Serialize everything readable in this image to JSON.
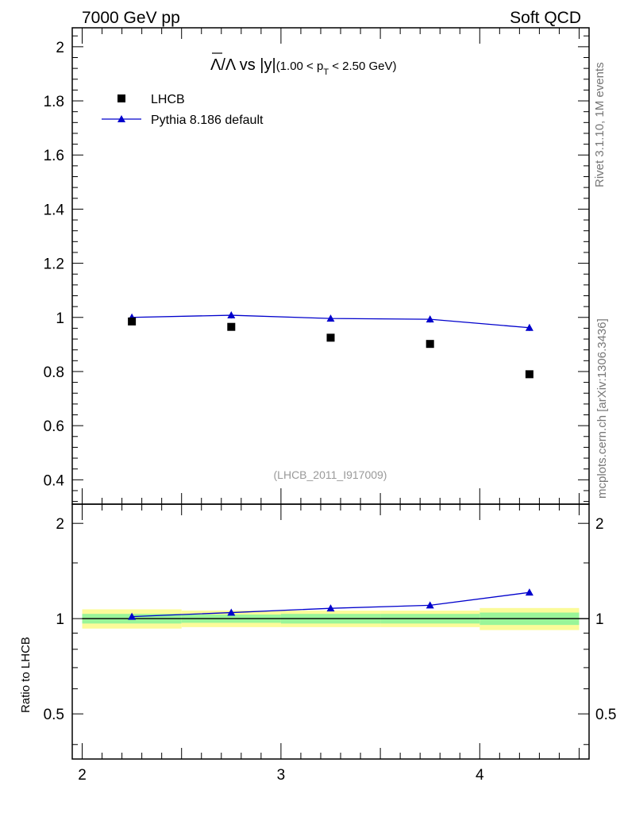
{
  "header": {
    "left": "7000 GeV pp",
    "right": "Soft QCD"
  },
  "side_labels": {
    "rivet": "Rivet 3.1.10,  1M events",
    "source": "mcplots.cern.ch [arXiv:1306.3436]"
  },
  "watermark": "(LHCB_2011_I917009)",
  "ratio_ylabel": "Ratio to LHCB",
  "chart_data": [
    {
      "type": "scatter",
      "title_parts": {
        "main": "Λ/Λ vs |y|",
        "range": "(1.00 < p",
        "sub": "T",
        "tail": " < 2.50 GeV)"
      },
      "xlim": [
        1.95,
        4.55
      ],
      "ylim": [
        0.31,
        2.07
      ],
      "y_ticks": [
        0.4,
        0.6,
        0.8,
        1,
        1.2,
        1.4,
        1.6,
        1.8,
        2
      ],
      "y_tick_labels": [
        "0.4",
        "0.6",
        "0.8",
        "1",
        "1.2",
        "1.4",
        "1.6",
        "1.8",
        "2"
      ],
      "legend": [
        "LHCB",
        "Pythia 8.186 default"
      ],
      "legend_position": "top-left",
      "series": [
        {
          "name": "LHCB",
          "x": [
            2.25,
            2.75,
            3.25,
            3.75,
            4.25
          ],
          "y": [
            0.985,
            0.965,
            0.925,
            0.902,
            0.79
          ]
        },
        {
          "name": "Pythia 8.186 default",
          "x": [
            2.25,
            2.75,
            3.25,
            3.75,
            4.25
          ],
          "y": [
            1.0,
            1.008,
            0.996,
            0.993,
            0.962
          ],
          "err": [
            0.007,
            0.012,
            0.01,
            0.012,
            0.012
          ]
        }
      ],
      "colors": {
        "data": "#000000",
        "mc": "#0000cc"
      }
    },
    {
      "type": "line",
      "xlim": [
        1.95,
        4.55
      ],
      "ylim": [
        0.36,
        2.3
      ],
      "log_y": true,
      "x_ticks": [
        2,
        3,
        4
      ],
      "x_tick_labels": [
        "2",
        "3",
        "4"
      ],
      "y_ticks": [
        0.5,
        1,
        2
      ],
      "y_tick_labels": [
        "0.5",
        "1",
        "2"
      ],
      "x_bins": [
        [
          2.0,
          2.5
        ],
        [
          2.5,
          3.0
        ],
        [
          3.0,
          3.5
        ],
        [
          3.5,
          4.0
        ],
        [
          4.0,
          4.5
        ]
      ],
      "band_inner": [
        [
          0.965,
          1.035
        ],
        [
          0.97,
          1.03
        ],
        [
          0.965,
          1.035
        ],
        [
          0.965,
          1.035
        ],
        [
          0.955,
          1.045
        ]
      ],
      "band_outer": [
        [
          0.93,
          1.07
        ],
        [
          0.94,
          1.06
        ],
        [
          0.94,
          1.06
        ],
        [
          0.94,
          1.06
        ],
        [
          0.92,
          1.08
        ]
      ],
      "series": [
        {
          "name": "Pythia 8.186 default",
          "x": [
            2.25,
            2.75,
            3.25,
            3.75,
            4.25
          ],
          "y": [
            1.015,
            1.045,
            1.078,
            1.102,
            1.21
          ]
        }
      ],
      "colors": {
        "inner_band": "#99f599",
        "outer_band": "#fbfb99",
        "line": "#0000cc",
        "ref": "#000000"
      }
    }
  ]
}
